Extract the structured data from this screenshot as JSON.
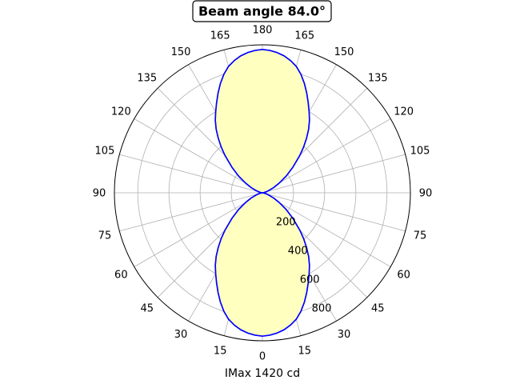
{
  "chart_data": {
    "type": "line",
    "projection": "polar",
    "title": "Beam angle 84.0°",
    "xlabel": "IMax 1420 cd",
    "angle_tick_labels": [
      "0",
      "15",
      "30",
      "45",
      "60",
      "75",
      "90",
      "105",
      "120",
      "135",
      "150",
      "165",
      "180",
      "165",
      "150",
      "135",
      "120",
      "105",
      "90",
      "75",
      "60",
      "45",
      "30",
      "15"
    ],
    "radial_ticks": [
      200,
      400,
      600,
      800
    ],
    "radial_tick_labels": [
      "200",
      "400",
      "600",
      "800"
    ],
    "rlim": [
      0,
      950
    ],
    "grid": true,
    "series": [
      {
        "color": "#0000ff",
        "fill": "#ffffc0",
        "angle_deg": [
          0,
          3,
          6,
          9,
          12,
          15,
          18,
          21,
          24,
          27,
          30,
          33,
          36,
          39,
          42,
          45,
          50,
          55,
          60,
          65,
          70,
          75,
          80,
          85,
          90
        ],
        "intensity": [
          920,
          915,
          905,
          890,
          868,
          840,
          800,
          752,
          700,
          648,
          600,
          555,
          505,
          450,
          395,
          340,
          255,
          185,
          125,
          80,
          45,
          25,
          10,
          3,
          0
        ]
      }
    ]
  }
}
